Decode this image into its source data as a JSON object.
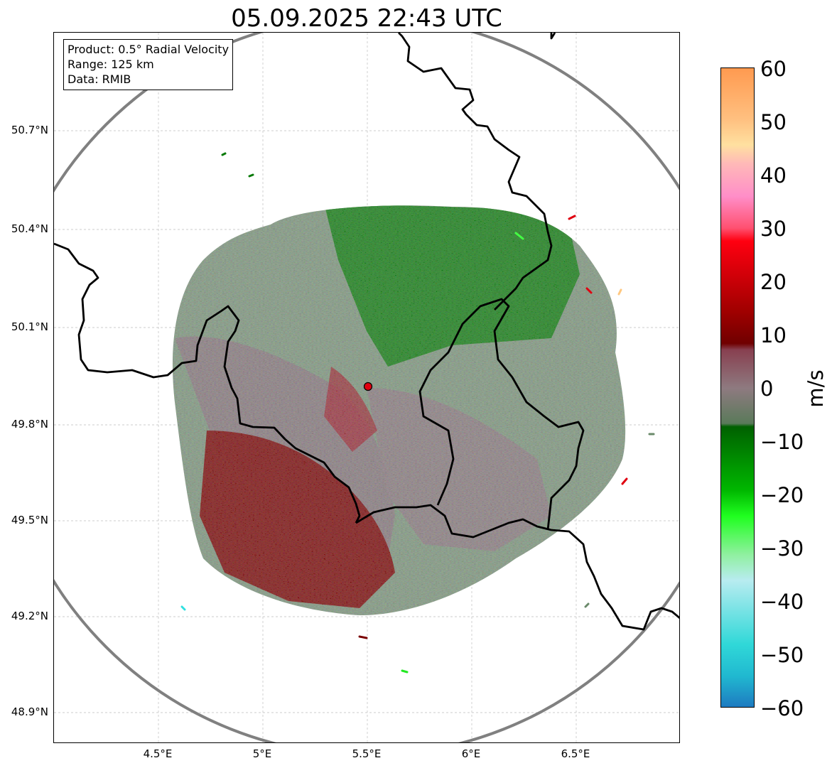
{
  "title": "05.09.2025 22:43 UTC",
  "info": {
    "product": "Product: 0.5° Radial Velocity",
    "range": "Range: 125 km",
    "data": "Data: RMIB"
  },
  "axes": {
    "lat_ticks": [
      "50.7°N",
      "50.4°N",
      "50.1°N",
      "49.8°N",
      "49.5°N",
      "49.2°N",
      "48.9°N"
    ],
    "lon_ticks": [
      "4.5°E",
      "5°E",
      "5.5°E",
      "6°E",
      "6.5°E"
    ]
  },
  "colorbar": {
    "unit": "m/s",
    "ticks": [
      "60",
      "50",
      "40",
      "30",
      "20",
      "10",
      "0",
      "−10",
      "−20",
      "−30",
      "−40",
      "−50",
      "−60"
    ],
    "min": -60,
    "max": 60
  },
  "colors": {
    "outbound_strong": "#7a0000",
    "outbound_red": "#e00010",
    "zero_gray": "#8a7a7e",
    "inbound_gray_green": "#6a8a6a",
    "inbound_green": "#0a7a0a",
    "bright_green": "#22e822",
    "cyan": "#30e0e0",
    "range_ring": "#808080",
    "border": "#000000"
  }
}
